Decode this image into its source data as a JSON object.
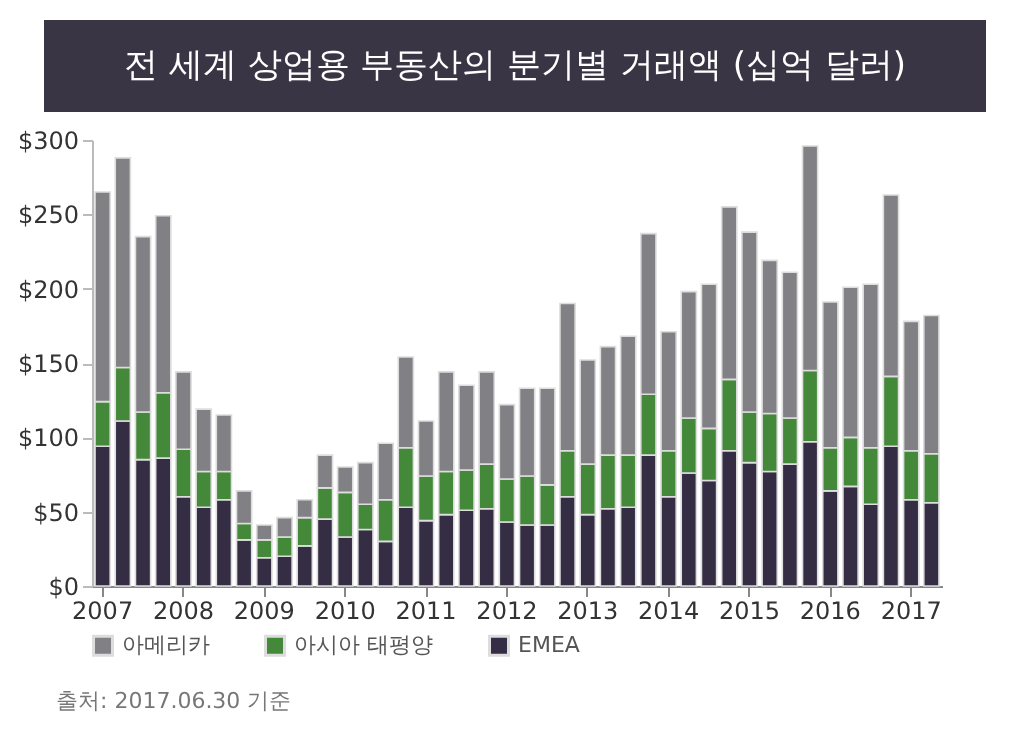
{
  "chart_data": {
    "type": "bar",
    "title": "전 세계 상업용 부동산의 분기별 거래액 (십억 달러)",
    "annotations": [
      "출처: 2017.06.30 기준"
    ],
    "categories": [
      "2007",
      null,
      null,
      null,
      "2008",
      null,
      null,
      null,
      "2009",
      null,
      null,
      null,
      "2010",
      null,
      null,
      null,
      "2011",
      null,
      null,
      null,
      "2012",
      null,
      null,
      null,
      "2013",
      null,
      null,
      null,
      "2014",
      null,
      null,
      null,
      "2015",
      null,
      null,
      null,
      "2016",
      null,
      null,
      null,
      "2017",
      null
    ],
    "stacked": true,
    "ylim": [
      0,
      300
    ],
    "yticks": [
      {
        "value": 0,
        "label": "$0"
      },
      {
        "value": 50,
        "label": "$50"
      },
      {
        "value": 100,
        "label": "$100"
      },
      {
        "value": 150,
        "label": "$150"
      },
      {
        "value": 200,
        "label": "$200"
      },
      {
        "value": 250,
        "label": "$250"
      },
      {
        "value": 300,
        "label": "$300"
      }
    ],
    "grid": false,
    "legend": "bottom",
    "series": [
      {
        "name": "EMEA",
        "color": "#352d44",
        "values": [
          94,
          111,
          85,
          86,
          60,
          53,
          58,
          31,
          19,
          20,
          27,
          45,
          33,
          38,
          30,
          53,
          44,
          48,
          51,
          52,
          43,
          41,
          41,
          60,
          48,
          52,
          53,
          88,
          60,
          76,
          71,
          91,
          83,
          77,
          82,
          97,
          64,
          67,
          55,
          94,
          58,
          56
        ]
      },
      {
        "name": "아시아 태평양",
        "color": "#44883a",
        "values": [
          30,
          36,
          32,
          44,
          32,
          24,
          19,
          11,
          12,
          13,
          19,
          21,
          30,
          17,
          28,
          40,
          30,
          29,
          27,
          30,
          29,
          33,
          27,
          31,
          34,
          36,
          35,
          41,
          31,
          37,
          35,
          48,
          34,
          39,
          31,
          48,
          29,
          33,
          38,
          47,
          33,
          33
        ]
      },
      {
        "name": "아메리카",
        "color": "#808085",
        "values": [
          141,
          141,
          118,
          119,
          52,
          42,
          38,
          22,
          10,
          13,
          12,
          22,
          17,
          28,
          38,
          61,
          37,
          67,
          57,
          62,
          50,
          59,
          65,
          99,
          70,
          73,
          80,
          108,
          80,
          85,
          97,
          116,
          121,
          103,
          98,
          151,
          98,
          101,
          110,
          122,
          87,
          93
        ]
      }
    ]
  }
}
